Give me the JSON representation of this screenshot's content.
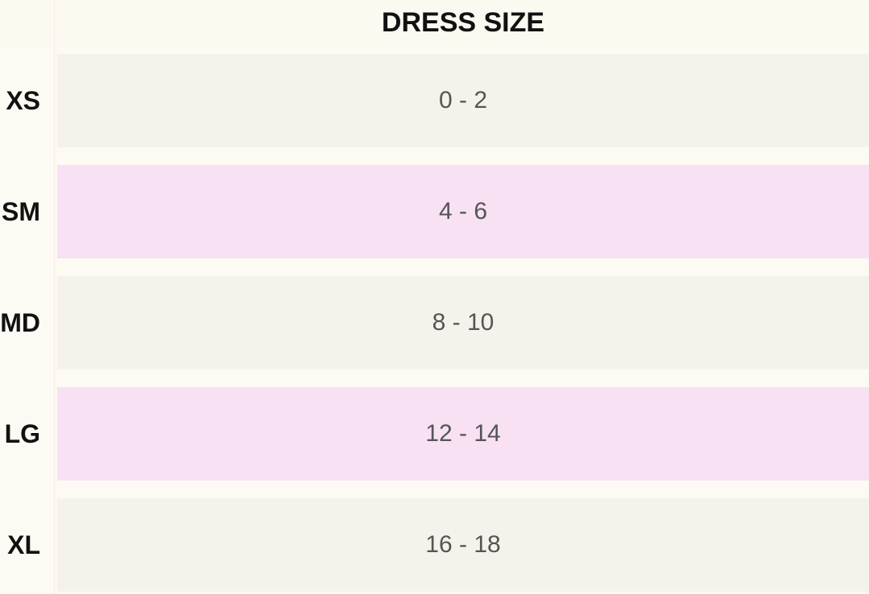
{
  "table": {
    "header": "DRESS SIZE",
    "rows": [
      [
        "XS",
        "0 - 2"
      ],
      [
        "SM",
        "4 - 6"
      ],
      [
        "MD",
        "8 - 10"
      ],
      [
        "LG",
        "12 - 14"
      ],
      [
        "XL",
        "16 - 18"
      ]
    ]
  }
}
